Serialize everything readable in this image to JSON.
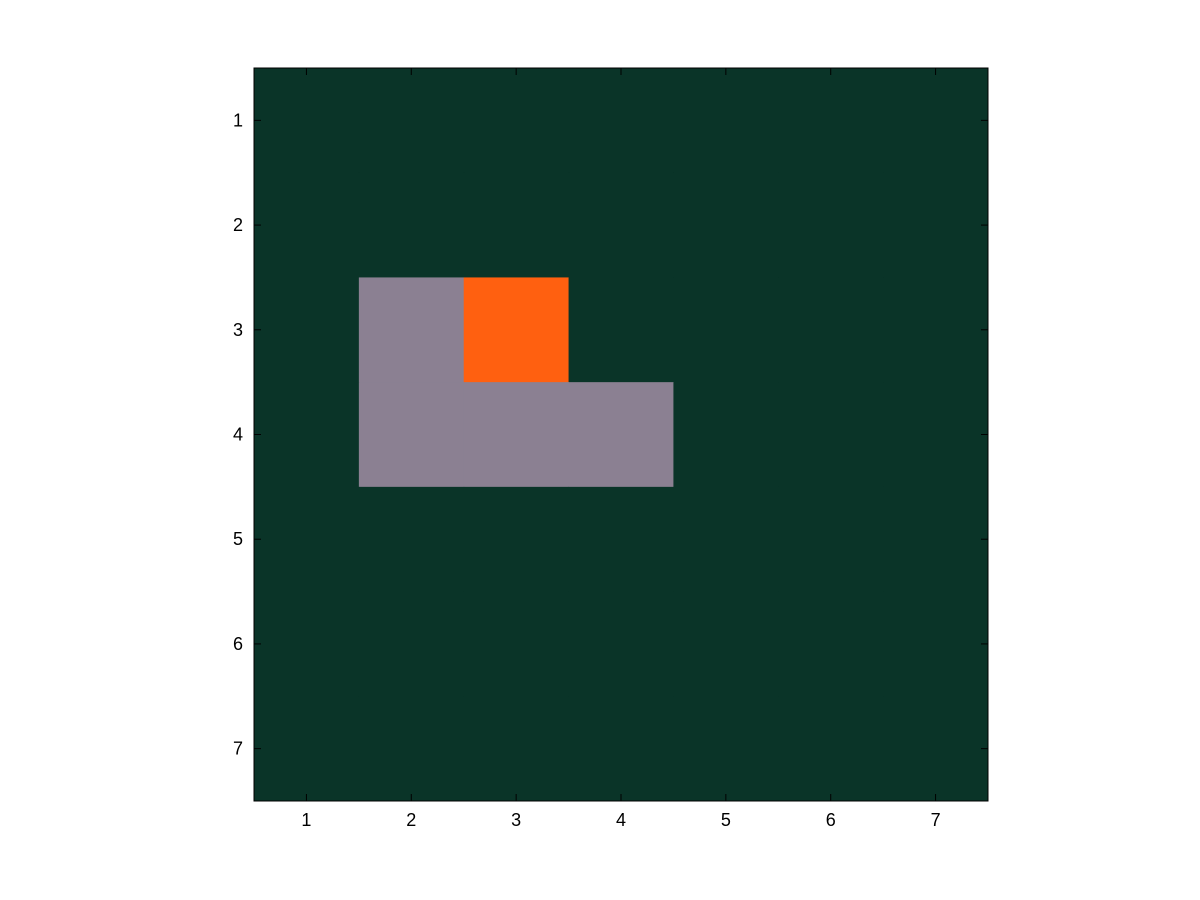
{
  "chart_data": {
    "type": "heatmap",
    "title": "",
    "xlabel": "",
    "ylabel": "",
    "x_ticks": [
      "1",
      "2",
      "3",
      "4",
      "5",
      "6",
      "7"
    ],
    "y_ticks": [
      "1",
      "2",
      "3",
      "4",
      "5",
      "6",
      "7"
    ],
    "xlim": [
      0.5,
      7.5
    ],
    "ylim": [
      0.5,
      7.5
    ],
    "y_axis_direction": "reversed",
    "grid": false,
    "colors": {
      "background": "#0a3428",
      "gray": "#8b8092",
      "orange": "#ff6010"
    },
    "matrix": [
      [
        "background",
        "background",
        "background",
        "background",
        "background",
        "background",
        "background"
      ],
      [
        "background",
        "background",
        "background",
        "background",
        "background",
        "background",
        "background"
      ],
      [
        "background",
        "gray",
        "orange",
        "background",
        "background",
        "background",
        "background"
      ],
      [
        "background",
        "gray",
        "gray",
        "gray",
        "background",
        "background",
        "background"
      ],
      [
        "background",
        "background",
        "background",
        "background",
        "background",
        "background",
        "background"
      ],
      [
        "background",
        "background",
        "background",
        "background",
        "background",
        "background",
        "background"
      ],
      [
        "background",
        "background",
        "background",
        "background",
        "background",
        "background",
        "background"
      ]
    ]
  }
}
